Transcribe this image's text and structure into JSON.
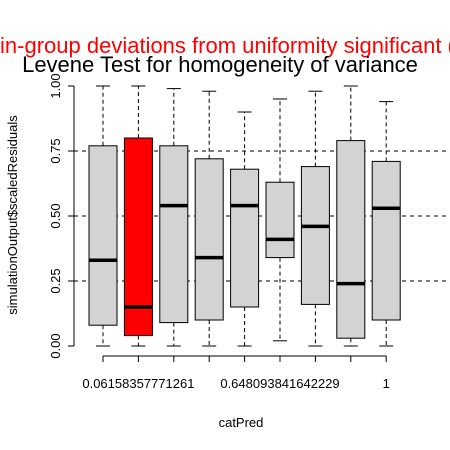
{
  "chart_data": {
    "type": "boxplot",
    "title": "Levene Test for homogeneity of variance",
    "subtitle": "Within-group deviations from uniformity significant (red)",
    "xlabel": "catPred",
    "ylabel": "simulationOutput$scaledResiduals",
    "ylim": [
      0,
      1
    ],
    "yticks": [
      "0.00",
      "0.25",
      "0.50",
      "0.75",
      "1.00"
    ],
    "xtick_labels": [
      "0.06158357771261",
      "0.648093841642229",
      "1"
    ],
    "reference_lines": [
      0.25,
      0.5,
      0.75
    ],
    "colors": {
      "normal": "#d3d3d3",
      "flagged": "#ff0000",
      "subtitle": "#ff0000"
    },
    "boxes": [
      {
        "min": 0.0,
        "q1": 0.08,
        "median": 0.33,
        "q3": 0.77,
        "max": 1.0,
        "flagged": false
      },
      {
        "min": 0.0,
        "q1": 0.04,
        "median": 0.15,
        "q3": 0.8,
        "max": 1.0,
        "flagged": true
      },
      {
        "min": 0.0,
        "q1": 0.09,
        "median": 0.54,
        "q3": 0.77,
        "max": 0.99,
        "flagged": false
      },
      {
        "min": 0.0,
        "q1": 0.1,
        "median": 0.34,
        "q3": 0.72,
        "max": 0.98,
        "flagged": false
      },
      {
        "min": 0.0,
        "q1": 0.15,
        "median": 0.54,
        "q3": 0.68,
        "max": 0.9,
        "flagged": false
      },
      {
        "min": 0.02,
        "q1": 0.34,
        "median": 0.41,
        "q3": 0.63,
        "max": 0.95,
        "flagged": false
      },
      {
        "min": 0.0,
        "q1": 0.16,
        "median": 0.46,
        "q3": 0.69,
        "max": 0.98,
        "flagged": false
      },
      {
        "min": 0.0,
        "q1": 0.03,
        "median": 0.24,
        "q3": 0.79,
        "max": 1.0,
        "flagged": false
      },
      {
        "min": 0.0,
        "q1": 0.1,
        "median": 0.53,
        "q3": 0.71,
        "max": 0.94,
        "flagged": false
      }
    ]
  }
}
